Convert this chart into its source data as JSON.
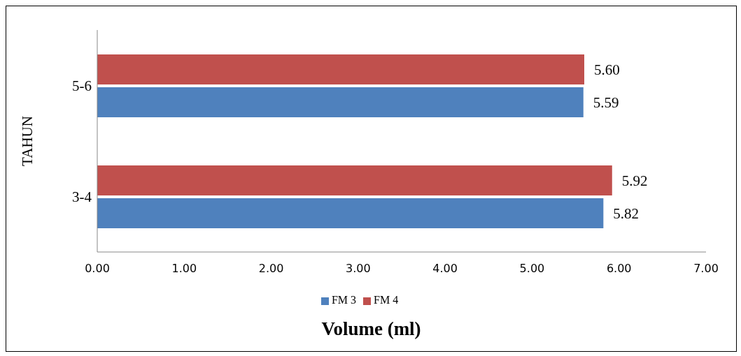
{
  "chart_data": {
    "type": "bar",
    "orientation": "horizontal",
    "ylabel": "TAHUN",
    "xlabel": "Volume (ml)",
    "categories": [
      "5-6",
      "3-4"
    ],
    "series": [
      {
        "name": "FM 4",
        "color": "#c0504d",
        "values": [
          5.6,
          5.92
        ],
        "value_labels": [
          "5.60",
          "5.92"
        ]
      },
      {
        "name": "FM 3",
        "color": "#4f81bd",
        "values": [
          5.59,
          5.82
        ],
        "value_labels": [
          "5.59",
          "5.82"
        ]
      }
    ],
    "xlim": [
      0,
      7
    ],
    "xticks": [
      {
        "value": 0,
        "label": "0.00"
      },
      {
        "value": 1,
        "label": "1.00"
      },
      {
        "value": 2,
        "label": "2.00"
      },
      {
        "value": 3,
        "label": "3.00"
      },
      {
        "value": 4,
        "label": "4.00"
      },
      {
        "value": 5,
        "label": "5.00"
      },
      {
        "value": 6,
        "label": "6.00"
      },
      {
        "value": 7,
        "label": "7.00"
      }
    ],
    "legend": "bottom"
  }
}
